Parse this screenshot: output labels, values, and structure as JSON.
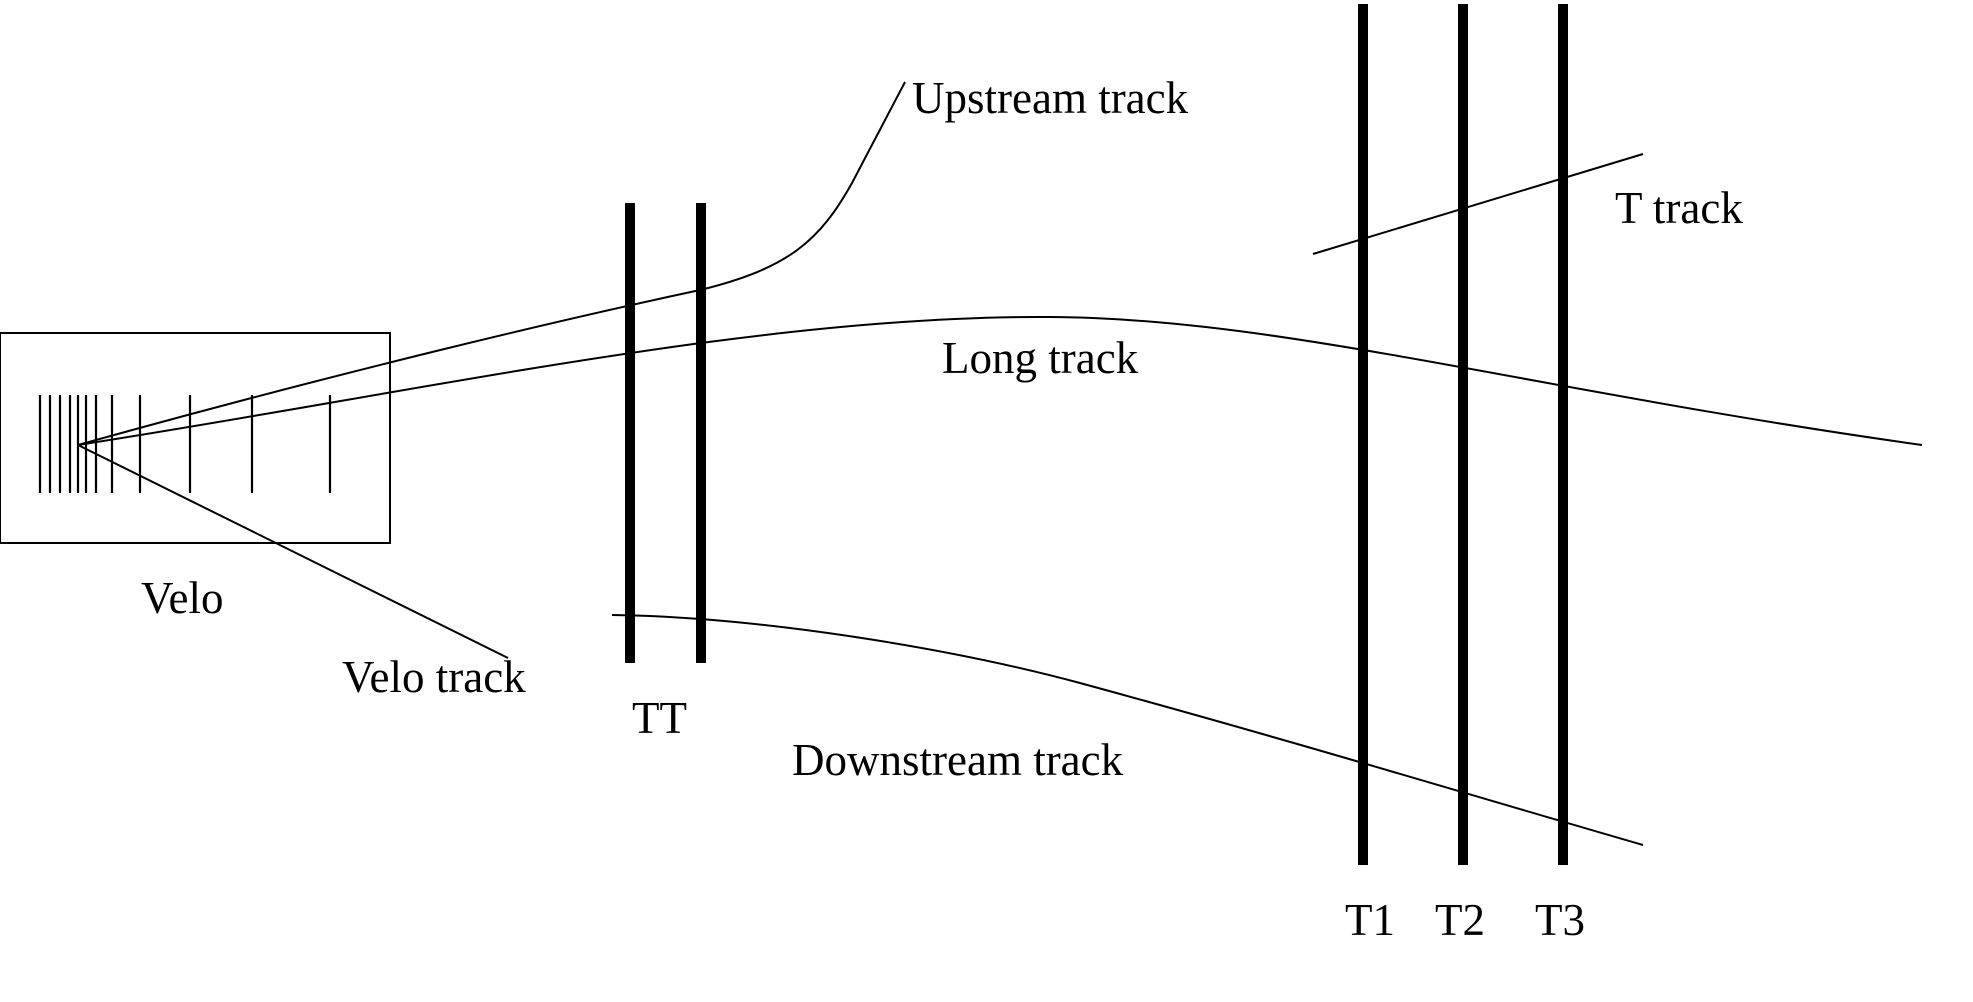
{
  "labels": {
    "velo": "Velo",
    "velo_track": "Velo track",
    "upstream_track": "Upstream track",
    "long_track": "Long track",
    "downstream_track": "Downstream track",
    "t_track": "T track",
    "tt": "TT",
    "t1": "T1",
    "t2": "T2",
    "t3": "T3"
  },
  "colors": {
    "line": "#000000",
    "background": "#ffffff"
  }
}
